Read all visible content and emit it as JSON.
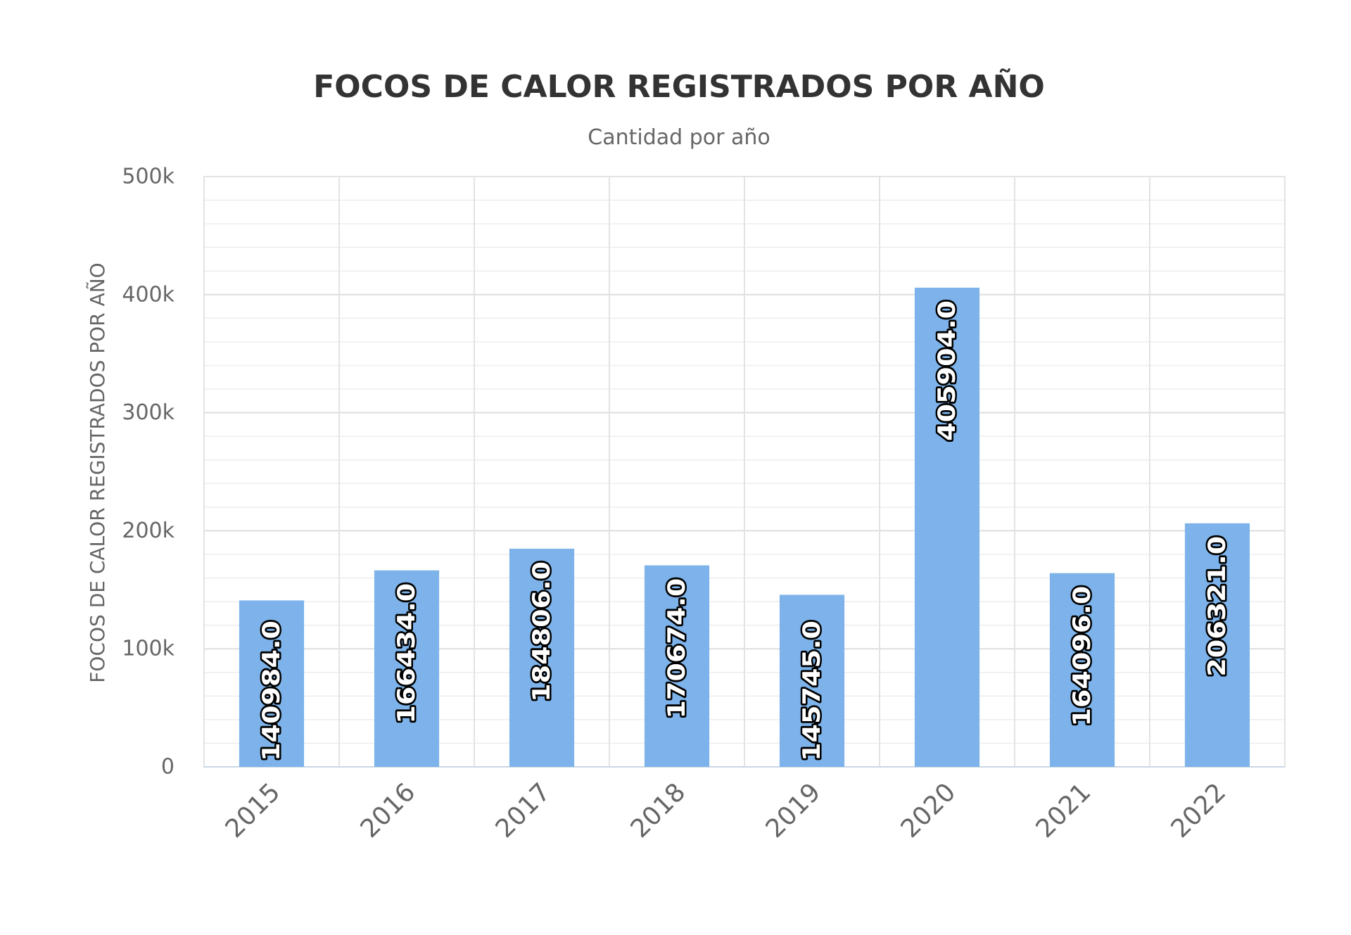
{
  "chart_data": {
    "type": "bar",
    "title": "FOCOS DE CALOR REGISTRADOS POR AÑO",
    "subtitle": "Cantidad por año",
    "xlabel": "",
    "ylabel": "FOCOS DE CALOR REGISTRADOS POR AÑO",
    "categories": [
      "2015",
      "2016",
      "2017",
      "2018",
      "2019",
      "2020",
      "2021",
      "2022"
    ],
    "values": [
      140984,
      166434,
      184806,
      170674,
      145745,
      405904,
      164096,
      206321
    ],
    "data_labels": [
      "140984.0",
      "166434.0",
      "184806.0",
      "170674.0",
      "145745.0",
      "405904.0",
      "164096.0",
      "206321.0"
    ],
    "ylim": [
      0,
      500000
    ],
    "yticks": [
      0,
      100000,
      200000,
      300000,
      400000,
      500000
    ],
    "ytick_labels": [
      "0",
      "100k",
      "200k",
      "300k",
      "400k",
      "500k"
    ],
    "minor_tick_step": 20000,
    "grid": true,
    "legend": "none",
    "colors": {
      "bar": "#7db3ea",
      "title": "#333333",
      "text": "#666666"
    }
  }
}
